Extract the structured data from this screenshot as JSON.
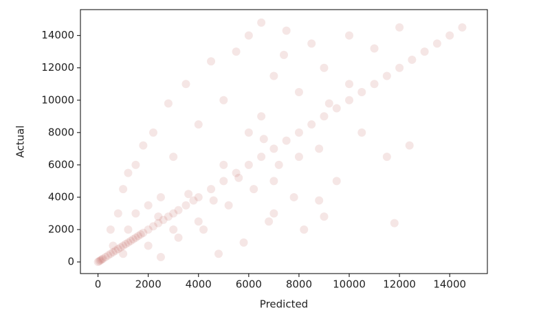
{
  "chart_data": {
    "type": "scatter",
    "x_label": "Predicted",
    "y_label": "Actual",
    "color": "#a93226",
    "alpha": 0.12,
    "x": [
      0,
      50,
      100,
      150,
      200,
      300,
      400,
      500,
      600,
      700,
      800,
      900,
      1000,
      1100,
      1200,
      1300,
      1400,
      1500,
      1600,
      1700,
      1800,
      2000,
      2200,
      2400,
      2600,
      2800,
      3000,
      3200,
      3500,
      3800,
      4000,
      4500,
      5000,
      5500,
      6000,
      6500,
      7000,
      7500,
      8000,
      8500,
      9000,
      9500,
      10000,
      10500,
      11000,
      11500,
      12000,
      12500,
      13000,
      13500,
      14000,
      14500,
      500,
      800,
      1000,
      1200,
      1500,
      1800,
      2000,
      2200,
      2500,
      2800,
      3000,
      3200,
      3500,
      4000,
      4200,
      4500,
      4800,
      5000,
      5200,
      5500,
      5800,
      6000,
      6200,
      6500,
      6800,
      7000,
      7200,
      7500,
      7800,
      8000,
      8200,
      8500,
      8800,
      9000,
      9500,
      10000,
      10500,
      11000,
      11500,
      12000,
      12400,
      6500,
      7000,
      7400,
      8800,
      9200,
      3000,
      2500,
      1500,
      1000,
      2000,
      4000,
      5000,
      6000,
      7000,
      8000,
      9000,
      10000,
      11800,
      1200,
      600,
      2400,
      3600,
      4600,
      5600,
      6600
    ],
    "values": [
      0,
      50,
      100,
      150,
      200,
      300,
      400,
      500,
      600,
      700,
      800,
      900,
      1000,
      1100,
      1200,
      1300,
      1400,
      1500,
      1600,
      1700,
      1800,
      2000,
      2200,
      2400,
      2600,
      2800,
      3000,
      3200,
      3500,
      3800,
      4000,
      4500,
      5000,
      5500,
      6000,
      6500,
      7000,
      7500,
      8000,
      8500,
      9000,
      9500,
      10000,
      10500,
      11000,
      11500,
      12000,
      12500,
      13000,
      13500,
      14000,
      14500,
      2000,
      3000,
      4500,
      5500,
      6000,
      7200,
      1000,
      8000,
      300,
      9800,
      6500,
      1500,
      11000,
      8500,
      2000,
      12400,
      500,
      10000,
      3500,
      13000,
      1200,
      14000,
      4500,
      14800,
      2500,
      11500,
      6000,
      14300,
      4000,
      10500,
      2000,
      13500,
      7000,
      12000,
      5000,
      14000,
      8000,
      13200,
      6500,
      14500,
      7200,
      9000,
      3000,
      12800,
      3800,
      9800,
      2000,
      4000,
      3000,
      500,
      3500,
      2500,
      6000,
      8000,
      5000,
      6500,
      2800,
      11000,
      2400,
      2000,
      1000,
      2800,
      4200,
      3800,
      5200,
      7600
    ],
    "xlim": [
      -700,
      15500
    ],
    "ylim": [
      -720,
      15600
    ],
    "xticks": [
      0,
      2000,
      4000,
      6000,
      8000,
      10000,
      12000,
      14000
    ],
    "yticks": [
      0,
      2000,
      4000,
      6000,
      8000,
      10000,
      12000,
      14000
    ]
  }
}
